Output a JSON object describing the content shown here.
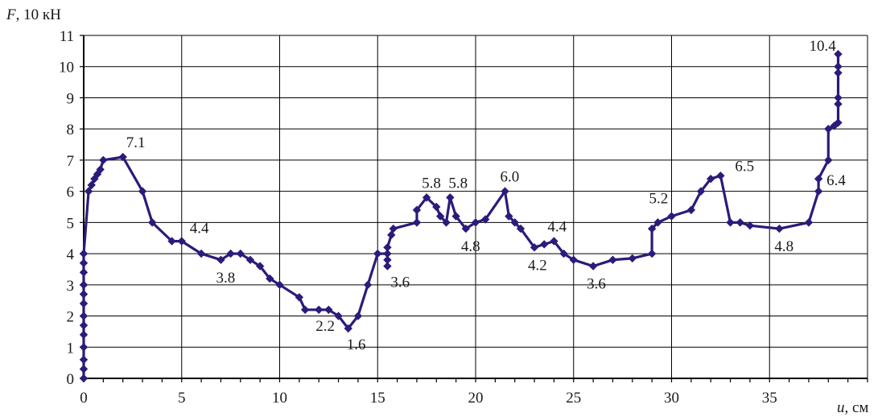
{
  "chart_data": {
    "type": "line",
    "ylabel_var": "F",
    "ylabel_unit": ", 10 кН",
    "xlabel_var": "u",
    "xlabel_unit": ", см",
    "xlim": [
      0,
      40
    ],
    "ylim": [
      0,
      11
    ],
    "xticks": [
      0,
      5,
      10,
      15,
      20,
      25,
      30,
      35
    ],
    "yticks": [
      0,
      1,
      2,
      3,
      4,
      5,
      6,
      7,
      8,
      9,
      10,
      11
    ],
    "grid": true,
    "line_color": "#2b1b7a",
    "series": [
      {
        "points": [
          [
            0,
            0
          ],
          [
            0,
            0.3
          ],
          [
            0,
            0.6
          ],
          [
            0,
            1.0
          ],
          [
            0,
            1.4
          ],
          [
            0,
            1.7
          ],
          [
            0,
            2.0
          ],
          [
            0,
            2.4
          ],
          [
            0,
            2.7
          ],
          [
            0,
            3.0
          ],
          [
            0,
            3.4
          ],
          [
            0,
            3.7
          ],
          [
            0,
            4.0
          ],
          [
            0.25,
            6.0
          ],
          [
            0.4,
            6.2
          ],
          [
            0.55,
            6.4
          ],
          [
            0.7,
            6.55
          ],
          [
            0.85,
            6.7
          ],
          [
            1.0,
            7.0
          ],
          [
            2.0,
            7.1
          ],
          [
            3.0,
            6.0
          ],
          [
            3.5,
            5.0
          ],
          [
            4.5,
            4.4
          ],
          [
            5.0,
            4.4
          ],
          [
            6.0,
            4.0
          ],
          [
            7.0,
            3.8
          ],
          [
            7.5,
            4.0
          ],
          [
            8.0,
            4.0
          ],
          [
            8.5,
            3.8
          ],
          [
            9.0,
            3.6
          ],
          [
            9.5,
            3.2
          ],
          [
            10.0,
            3.0
          ],
          [
            11.0,
            2.6
          ],
          [
            11.3,
            2.2
          ],
          [
            12.0,
            2.2
          ],
          [
            12.5,
            2.2
          ],
          [
            13.0,
            2.0
          ],
          [
            13.5,
            1.6
          ],
          [
            14.0,
            2.0
          ],
          [
            14.5,
            3.0
          ],
          [
            15.0,
            4.0
          ],
          [
            15.5,
            4.0
          ],
          [
            15.5,
            3.6
          ],
          [
            15.5,
            3.8
          ],
          [
            15.5,
            4.2
          ],
          [
            15.7,
            4.6
          ],
          [
            15.8,
            4.8
          ],
          [
            17.0,
            5.0
          ],
          [
            17.0,
            5.4
          ],
          [
            17.5,
            5.8
          ],
          [
            18.0,
            5.5
          ],
          [
            18.2,
            5.2
          ],
          [
            18.5,
            5.0
          ],
          [
            18.7,
            5.8
          ],
          [
            19.0,
            5.2
          ],
          [
            19.5,
            4.8
          ],
          [
            20.0,
            5.0
          ],
          [
            20.5,
            5.1
          ],
          [
            21.5,
            6.0
          ],
          [
            21.7,
            5.2
          ],
          [
            22.0,
            5.0
          ],
          [
            22.3,
            4.8
          ],
          [
            23.0,
            4.2
          ],
          [
            23.5,
            4.3
          ],
          [
            24.0,
            4.4
          ],
          [
            24.5,
            4.0
          ],
          [
            25.0,
            3.8
          ],
          [
            26.0,
            3.6
          ],
          [
            27.0,
            3.8
          ],
          [
            28.0,
            3.85
          ],
          [
            29.0,
            4.0
          ],
          [
            29.0,
            4.8
          ],
          [
            29.3,
            5.0
          ],
          [
            30.0,
            5.2
          ],
          [
            31.0,
            5.4
          ],
          [
            31.5,
            6.0
          ],
          [
            32.0,
            6.4
          ],
          [
            32.5,
            6.5
          ],
          [
            33.0,
            5.0
          ],
          [
            33.5,
            5.0
          ],
          [
            34.0,
            4.9
          ],
          [
            35.5,
            4.8
          ],
          [
            37.0,
            5.0
          ],
          [
            37.5,
            6.0
          ],
          [
            37.5,
            6.4
          ],
          [
            38.0,
            7.0
          ],
          [
            38.0,
            8.0
          ],
          [
            38.3,
            8.1
          ],
          [
            38.5,
            8.2
          ],
          [
            38.5,
            8.8
          ],
          [
            38.5,
            9.0
          ],
          [
            38.5,
            9.8
          ],
          [
            38.5,
            10.0
          ],
          [
            38.5,
            10.4
          ]
        ]
      }
    ],
    "annotations": [
      {
        "text": "7.1",
        "x": 2.0,
        "y": 7.1
      },
      {
        "text": "4.4",
        "x": 5.0,
        "y": 4.4
      },
      {
        "text": "3.8",
        "x": 7.0,
        "y": 3.8
      },
      {
        "text": "2.2",
        "x": 12.0,
        "y": 2.2
      },
      {
        "text": "1.6",
        "x": 13.5,
        "y": 1.6
      },
      {
        "text": "3.6",
        "x": 15.5,
        "y": 3.6
      },
      {
        "text": "5.8",
        "x": 17.5,
        "y": 5.8
      },
      {
        "text": "5.8",
        "x": 18.7,
        "y": 5.8
      },
      {
        "text": "4.8",
        "x": 19.5,
        "y": 4.8
      },
      {
        "text": "6.0",
        "x": 21.5,
        "y": 6.0
      },
      {
        "text": "4.2",
        "x": 23.0,
        "y": 4.2
      },
      {
        "text": "4.4",
        "x": 24.0,
        "y": 4.4
      },
      {
        "text": "3.6",
        "x": 26.0,
        "y": 3.6
      },
      {
        "text": "5.2",
        "x": 30.0,
        "y": 5.2
      },
      {
        "text": "6.5",
        "x": 32.5,
        "y": 6.5
      },
      {
        "text": "4.8",
        "x": 35.5,
        "y": 4.8
      },
      {
        "text": "6.4",
        "x": 37.5,
        "y": 6.4
      },
      {
        "text": "10.4",
        "x": 38.5,
        "y": 10.4
      }
    ]
  }
}
